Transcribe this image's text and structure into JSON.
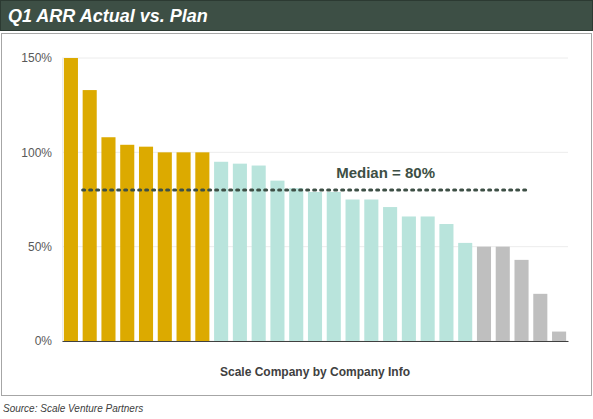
{
  "chart_data": {
    "type": "bar",
    "title": "Q1 ARR Actual vs. Plan",
    "x_label": "Scale Company by Company Info",
    "source": "Source: Scale Venture Partners",
    "categories": [
      null,
      null,
      null,
      null,
      null,
      null,
      null,
      null,
      null,
      null,
      null,
      null,
      null,
      null,
      null,
      null,
      null,
      null,
      null,
      null,
      null,
      null,
      null,
      null,
      null,
      null,
      null
    ],
    "values": [
      150,
      133,
      108,
      104,
      103,
      100,
      100,
      100,
      95,
      94,
      93,
      85,
      81,
      79,
      79,
      75,
      75,
      71,
      66,
      66,
      62,
      52,
      50,
      50,
      43,
      25,
      5
    ],
    "colors": [
      "#dcaa00",
      "#dcaa00",
      "#dcaa00",
      "#dcaa00",
      "#dcaa00",
      "#dcaa00",
      "#dcaa00",
      "#dcaa00",
      "#b9e4dc",
      "#b9e4dc",
      "#b9e4dc",
      "#b9e4dc",
      "#b9e4dc",
      "#b9e4dc",
      "#b9e4dc",
      "#b9e4dc",
      "#b9e4dc",
      "#b9e4dc",
      "#b9e4dc",
      "#b9e4dc",
      "#b9e4dc",
      "#b9e4dc",
      "#bfbfbf",
      "#bfbfbf",
      "#bfbfbf",
      "#bfbfbf",
      "#bfbfbf"
    ],
    "ylim": [
      0,
      150
    ],
    "yticks": [
      {
        "value": 0,
        "label": "0%"
      },
      {
        "value": 50,
        "label": "50%"
      },
      {
        "value": 100,
        "label": "100%"
      },
      {
        "value": 150,
        "label": "150%"
      }
    ],
    "grid": true,
    "tick_labels": "y",
    "data_labels": false,
    "annotations": [
      {
        "text": "Median = 80%",
        "y": 80
      }
    ]
  }
}
